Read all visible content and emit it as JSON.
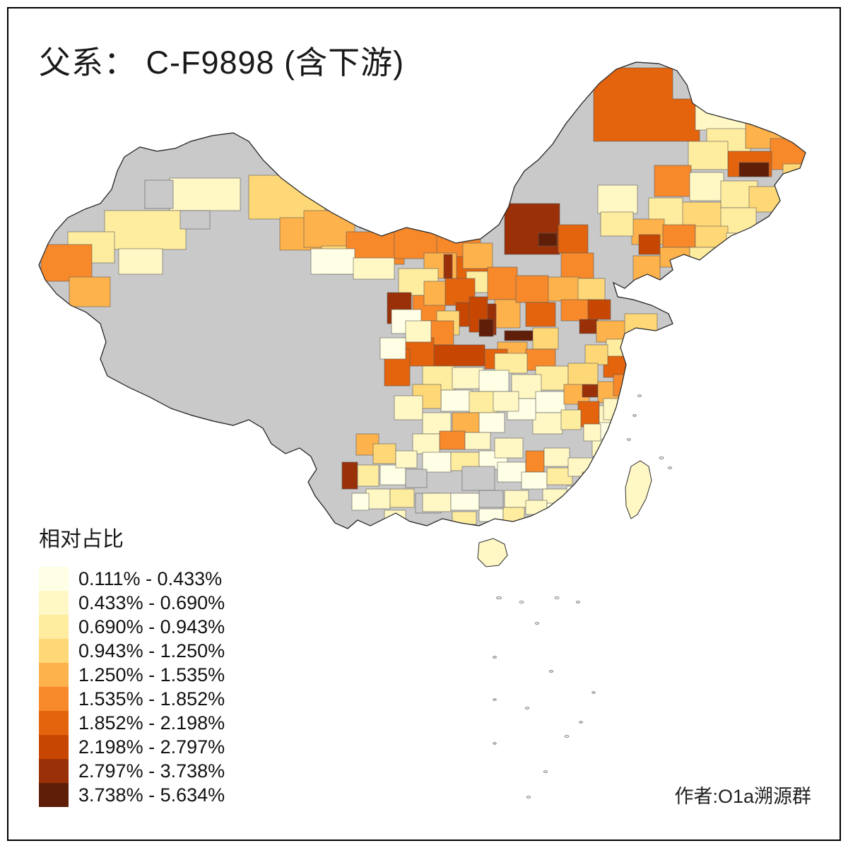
{
  "title": "父系： C-F9898 (含下游)",
  "legend": {
    "title": "相对占比",
    "items": [
      {
        "label": "0.111% - 0.433%",
        "color": "#FFFFE5"
      },
      {
        "label": "0.433% - 0.690%",
        "color": "#FFF8C5"
      },
      {
        "label": "0.690% - 0.943%",
        "color": "#FEEC9F"
      },
      {
        "label": "0.943% - 1.250%",
        "color": "#FED876"
      },
      {
        "label": "1.250% - 1.535%",
        "color": "#FEB24C"
      },
      {
        "label": "1.535% - 1.852%",
        "color": "#F8892B"
      },
      {
        "label": "1.852% - 2.198%",
        "color": "#E4640E"
      },
      {
        "label": "2.198% - 2.797%",
        "color": "#C74702"
      },
      {
        "label": "2.797% - 3.738%",
        "color": "#993007"
      },
      {
        "label": "3.738% - 5.634%",
        "color": "#5F1E08"
      }
    ]
  },
  "map": {
    "no_data_color": "#C9C9C9",
    "border_color": "#333333",
    "background": "#FFFFFF"
  },
  "credit": "作者:O1a溯源群"
}
